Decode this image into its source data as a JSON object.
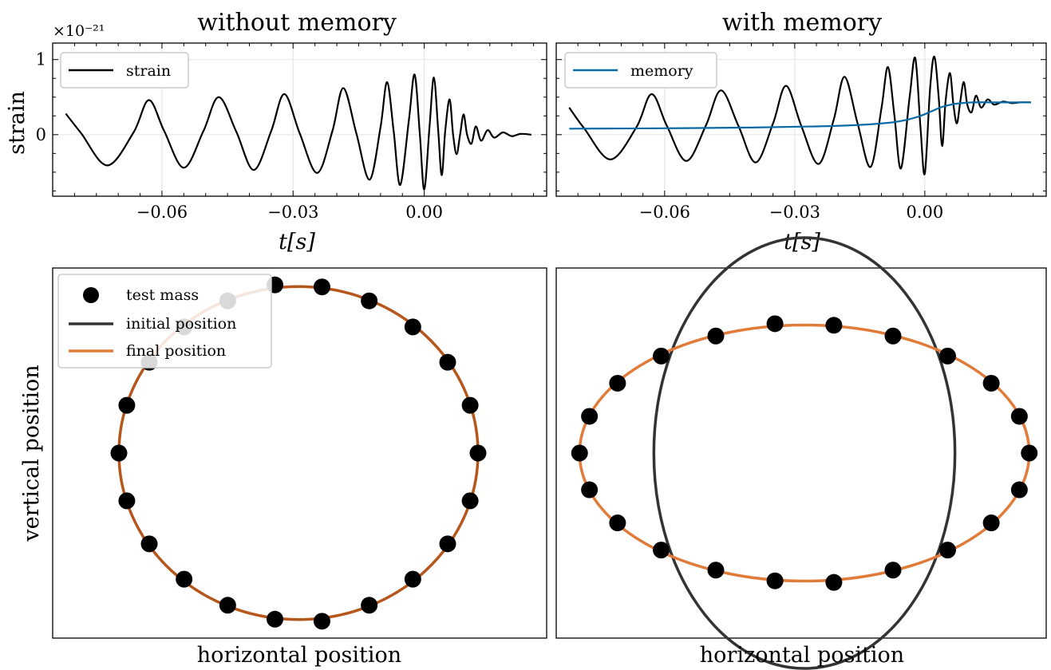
{
  "chart_data": [
    {
      "type": "line",
      "title": "without memory",
      "xlabel": "t[s]",
      "ylabel": "strain",
      "y_multiplier": "×10⁻²¹",
      "xlim": [
        -0.085,
        0.028
      ],
      "ylim": [
        -0.82,
        1.22
      ],
      "xticks": [
        -0.06,
        -0.03,
        0.0
      ],
      "xtick_labels": [
        "−0.06",
        "−0.03",
        "0.00"
      ],
      "yticks": [
        0,
        1
      ],
      "ytick_labels": [
        "0",
        "1"
      ],
      "grid": true,
      "legend_position": "top-left",
      "series": [
        {
          "name": "strain",
          "color": "#000000",
          "x": [
            -0.082,
            -0.0785,
            -0.0725,
            -0.0665,
            -0.063,
            -0.0595,
            -0.055,
            -0.0505,
            -0.047,
            -0.043,
            -0.039,
            -0.035,
            -0.032,
            -0.0285,
            -0.0245,
            -0.021,
            -0.0185,
            -0.0155,
            -0.0125,
            -0.01,
            -0.0085,
            -0.007,
            -0.0055,
            -0.0035,
            -0.0022,
            -0.001,
            0.0,
            0.0012,
            0.0022,
            0.0032,
            0.004,
            0.0048,
            0.0058,
            0.0066,
            0.0074,
            0.0082,
            0.009,
            0.0098,
            0.0108,
            0.0118,
            0.013,
            0.0145,
            0.016,
            0.018,
            0.02,
            0.022,
            0.0245
          ],
          "y": [
            0.28,
            0.02,
            -0.41,
            0.03,
            0.46,
            0.05,
            -0.44,
            0.05,
            0.5,
            0.04,
            -0.47,
            0.05,
            0.54,
            0.02,
            -0.51,
            0.05,
            0.62,
            0.01,
            -0.6,
            0.1,
            0.7,
            0.05,
            -0.67,
            0.2,
            0.8,
            0.0,
            -0.73,
            0.1,
            0.76,
            0.05,
            -0.54,
            0.05,
            0.47,
            0.0,
            -0.26,
            0.0,
            0.27,
            0.0,
            -0.12,
            0.11,
            -0.08,
            0.06,
            -0.04,
            0.03,
            -0.02,
            0.01,
            0.0
          ]
        }
      ]
    },
    {
      "type": "line",
      "title": "with memory",
      "xlabel": "t[s]",
      "ylabel": "",
      "xlim": [
        -0.085,
        0.028
      ],
      "ylim": [
        -0.82,
        1.22
      ],
      "xticks": [
        -0.06,
        -0.03,
        0.0
      ],
      "xtick_labels": [
        "−0.06",
        "−0.03",
        "0.00"
      ],
      "grid": true,
      "legend_position": "top-left",
      "series": [
        {
          "name": "",
          "color": "#000000",
          "x": [
            -0.082,
            -0.0785,
            -0.0725,
            -0.0665,
            -0.063,
            -0.0595,
            -0.055,
            -0.0505,
            -0.047,
            -0.043,
            -0.039,
            -0.035,
            -0.032,
            -0.0285,
            -0.0245,
            -0.021,
            -0.0185,
            -0.0155,
            -0.0125,
            -0.01,
            -0.0085,
            -0.007,
            -0.0055,
            -0.0035,
            -0.0022,
            -0.001,
            0.0,
            0.0012,
            0.0022,
            0.0032,
            0.004,
            0.0048,
            0.0058,
            0.0066,
            0.0074,
            0.0082,
            0.009,
            0.0098,
            0.0108,
            0.0118,
            0.013,
            0.0145,
            0.016,
            0.018,
            0.02,
            0.022,
            0.0245
          ],
          "y": [
            0.36,
            0.08,
            -0.33,
            0.1,
            0.54,
            0.12,
            -0.35,
            0.12,
            0.59,
            0.12,
            -0.37,
            0.15,
            0.65,
            0.12,
            -0.39,
            0.2,
            0.77,
            0.15,
            -0.43,
            0.35,
            0.9,
            0.25,
            -0.45,
            0.5,
            1.02,
            0.1,
            -0.52,
            0.6,
            1.04,
            0.5,
            -0.15,
            0.45,
            0.82,
            0.4,
            0.15,
            0.45,
            0.7,
            0.4,
            0.3,
            0.52,
            0.36,
            0.47,
            0.4,
            0.44,
            0.42,
            0.43,
            0.43
          ]
        },
        {
          "name": "memory",
          "color": "#0a6aa6",
          "x": [
            -0.082,
            -0.06,
            -0.04,
            -0.025,
            -0.015,
            -0.008,
            -0.004,
            -0.001,
            0.0015,
            0.004,
            0.007,
            0.011,
            0.016,
            0.0245
          ],
          "y": [
            0.08,
            0.085,
            0.095,
            0.11,
            0.13,
            0.16,
            0.2,
            0.25,
            0.31,
            0.37,
            0.41,
            0.43,
            0.43,
            0.43
          ]
        }
      ]
    },
    {
      "type": "scatter",
      "title": "",
      "xlabel": "horizontal position",
      "ylabel": "vertical position",
      "legend_position": "top-left",
      "series": [
        {
          "name": "test mass",
          "color": "#000000",
          "x": [
            1.0,
            0.956,
            0.831,
            0.637,
            0.394,
            0.131,
            -0.131,
            -0.394,
            -0.637,
            -0.831,
            -0.956,
            -1.0,
            -0.956,
            -0.831,
            -0.637,
            -0.394,
            -0.131,
            0.131,
            0.394,
            0.637,
            0.831,
            0.956
          ],
          "y": [
            0.0,
            0.284,
            0.54,
            0.75,
            0.905,
            0.988,
            1.0,
            0.905,
            0.75,
            0.54,
            0.284,
            0.0,
            -0.284,
            -0.54,
            -0.75,
            -0.905,
            -0.988,
            -1.0,
            -0.905,
            -0.75,
            -0.54,
            -0.284
          ]
        },
        {
          "name": "initial position",
          "color": "#333333",
          "kind": "ellipse",
          "a": 1.0,
          "b": 1.0
        },
        {
          "name": "final position",
          "color": "#e07b39",
          "kind": "ellipse",
          "a": 1.0,
          "b": 1.0
        }
      ]
    },
    {
      "type": "scatter",
      "title": "",
      "xlabel": "horizontal position",
      "ylabel": "",
      "series": [
        {
          "name": "test mass",
          "color": "#000000",
          "x": [
            1.0,
            0.956,
            0.831,
            0.637,
            0.394,
            0.131,
            -0.131,
            -0.394,
            -0.637,
            -0.831,
            -0.956,
            -1.0,
            -0.956,
            -0.831,
            -0.637,
            -0.394,
            -0.131,
            0.131,
            0.394,
            0.637,
            0.831,
            0.956
          ],
          "y": [
            0.0,
            0.284,
            0.54,
            0.75,
            0.905,
            0.988,
            1.0,
            0.905,
            0.75,
            0.54,
            0.284,
            0.0,
            -0.284,
            -0.54,
            -0.75,
            -0.905,
            -0.988,
            -1.0,
            -0.905,
            -0.75,
            -0.54,
            -0.284
          ]
        },
        {
          "name": "initial position",
          "color": "#333333",
          "kind": "ellipse",
          "a": 0.82,
          "b": 1.28
        },
        {
          "name": "final position",
          "color": "#e07b39",
          "kind": "ellipse",
          "a": 1.0,
          "b": 1.0
        }
      ]
    }
  ]
}
